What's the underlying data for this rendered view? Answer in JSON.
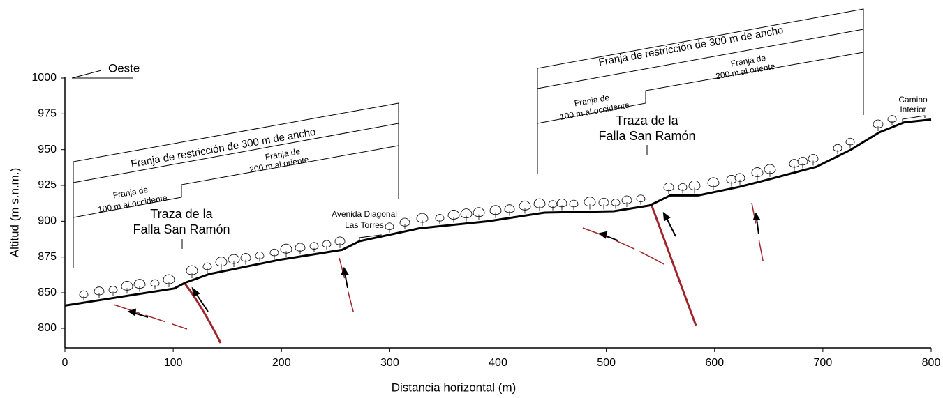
{
  "chart_data": {
    "type": "line",
    "xlabel": "Distancia horizontal (m)",
    "ylabel": "Altitud (m s.n.m.)",
    "x": [
      0,
      101,
      111,
      133,
      198,
      256,
      272,
      327,
      391,
      443,
      507,
      540,
      559,
      585,
      623,
      649,
      694,
      726,
      752,
      775,
      800
    ],
    "series": [
      {
        "color": "#000000",
        "values": [
          832,
          853,
          857,
          863,
          873,
          880,
          886,
          895,
          900,
          906,
          907,
          911,
          918,
          918,
          924,
          929,
          938,
          950,
          962,
          969,
          971
        ]
      }
    ],
    "xlim": [
      0,
      800
    ],
    "xticks": [
      0,
      100,
      200,
      300,
      400,
      500,
      600,
      700,
      800
    ],
    "ylim": [
      773,
      1000
    ],
    "yticks": [
      800,
      850,
      875,
      900,
      925,
      950,
      975,
      1000
    ],
    "annotations": [
      {
        "lines": [
          "Oeste"
        ]
      },
      {
        "lines": [
          "Franja de restricción de 300 m de ancho"
        ]
      },
      {
        "lines": [
          "Franja de",
          "200 m al oriente"
        ]
      },
      {
        "lines": [
          "Franja de",
          "100 m al occidente"
        ]
      },
      {
        "lines": [
          "Traza de la",
          "Falla San Ramón"
        ]
      },
      {
        "lines": [
          "Avenida Diagonal",
          "Las Torres"
        ]
      },
      {
        "lines": [
          "Franja de restricción de 300 m de ancho"
        ]
      },
      {
        "lines": [
          "Franja de",
          "200 m al oriente"
        ]
      },
      {
        "lines": [
          "Franja de",
          "100 m al occidente"
        ]
      },
      {
        "lines": [
          "Traza de la",
          "Falla San Ramón"
        ]
      },
      {
        "lines": [
          "Camino",
          "Interior"
        ]
      }
    ]
  }
}
